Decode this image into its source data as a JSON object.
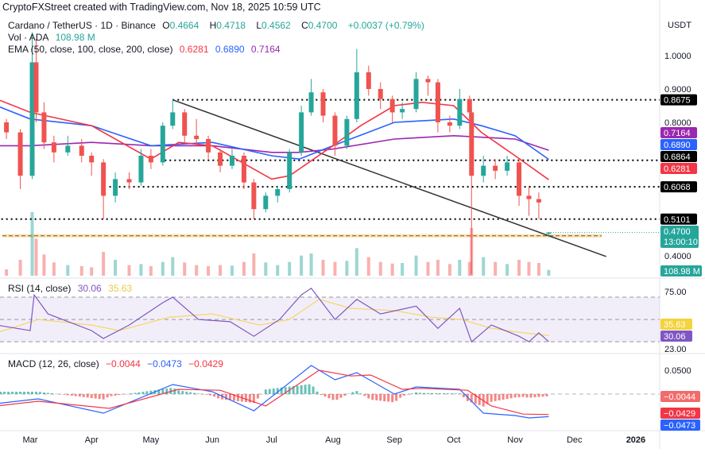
{
  "credit": "CryptoFXStreet created with TradingView.com, Nov 18, 2025 10:59 UTC",
  "legend": {
    "symbol": "Cardano / TetherUS · 1D · Binance",
    "o_label": "O",
    "o": "0.4664",
    "h_label": "H",
    "h": "0.4718",
    "l_label": "L",
    "l": "0.4562",
    "c_label": "C",
    "c": "0.4700",
    "change": "+0.0037 (+0.79%)",
    "vol_label": "Vol · ADA",
    "vol": "108.98 M",
    "ema_label": "EMA (50, close, 100, close, 200, close)",
    "ema50": "0.6281",
    "ema100": "0.6890",
    "ema200": "0.7164",
    "rsi_label": "RSI (14, close)",
    "rsi": "30.06",
    "rsi_ma": "35.63",
    "macd_label": "MACD (12, 26, close)",
    "macd_hist": "−0.0044",
    "macd": "−0.0473",
    "macd_signal": "−0.0429"
  },
  "currency": "USDT",
  "colors": {
    "up": "#26a69a",
    "down": "#ef5350",
    "ema50": "#f23645",
    "ema100": "#2962ff",
    "ema200": "#9c27b0",
    "rsi": "#7e57c2",
    "rsi_ma": "#f5d76e",
    "support_zone": "#f7c873",
    "level": "#000000"
  },
  "chart_data": [
    {
      "type": "candlestick",
      "pane": "price",
      "yticks": [
        "1.0000",
        "0.9000",
        "0.8000",
        "0.4000"
      ],
      "ylim": [
        0.36,
        1.09
      ],
      "xticks": [
        "Mar",
        "Apr",
        "May",
        "Jun",
        "Jul",
        "Aug",
        "Sep",
        "Oct",
        "Nov",
        "Dec",
        "2026"
      ],
      "xtick_dates": [
        "2025-03-01",
        "2025-04-01",
        "2025-05-01",
        "2025-06-01",
        "2025-07-01",
        "2025-08-01",
        "2025-09-01",
        "2025-10-01",
        "2025-11-01",
        "2025-12-01",
        "2026-01-01"
      ],
      "candles": [
        [
          "2025-02-12",
          0.82,
          0.8,
          0.84,
          0.78
        ],
        [
          "2025-02-17",
          0.8,
          0.77,
          0.81,
          0.75
        ],
        [
          "2025-02-24",
          0.77,
          0.64,
          0.78,
          0.6
        ],
        [
          "2025-03-02",
          0.64,
          0.98,
          1.07,
          0.63
        ],
        [
          "2025-03-04",
          0.98,
          0.83,
          1.05,
          0.8
        ],
        [
          "2025-03-08",
          0.83,
          0.74,
          0.86,
          0.72
        ],
        [
          "2025-03-13",
          0.74,
          0.71,
          0.76,
          0.68
        ],
        [
          "2025-03-20",
          0.71,
          0.73,
          0.76,
          0.7
        ],
        [
          "2025-03-27",
          0.73,
          0.7,
          0.75,
          0.68
        ],
        [
          "2025-04-01",
          0.7,
          0.68,
          0.71,
          0.64
        ],
        [
          "2025-04-07",
          0.68,
          0.58,
          0.69,
          0.51
        ],
        [
          "2025-04-13",
          0.58,
          0.63,
          0.65,
          0.56
        ],
        [
          "2025-04-20",
          0.63,
          0.62,
          0.65,
          0.6
        ],
        [
          "2025-04-26",
          0.62,
          0.7,
          0.72,
          0.61
        ],
        [
          "2025-05-01",
          0.7,
          0.68,
          0.72,
          0.66
        ],
        [
          "2025-05-07",
          0.68,
          0.79,
          0.8,
          0.67
        ],
        [
          "2025-05-12",
          0.79,
          0.83,
          0.8675,
          0.78
        ],
        [
          "2025-05-18",
          0.83,
          0.76,
          0.84,
          0.74
        ],
        [
          "2025-05-24",
          0.76,
          0.75,
          0.81,
          0.73
        ],
        [
          "2025-05-30",
          0.75,
          0.71,
          0.76,
          0.69
        ],
        [
          "2025-06-05",
          0.71,
          0.67,
          0.72,
          0.65
        ],
        [
          "2025-06-11",
          0.67,
          0.7,
          0.72,
          0.66
        ],
        [
          "2025-06-17",
          0.7,
          0.62,
          0.71,
          0.6
        ],
        [
          "2025-06-22",
          0.62,
          0.54,
          0.63,
          0.51
        ],
        [
          "2025-06-28",
          0.54,
          0.58,
          0.59,
          0.53
        ],
        [
          "2025-07-04",
          0.58,
          0.6,
          0.61,
          0.56
        ],
        [
          "2025-07-10",
          0.6,
          0.71,
          0.72,
          0.59
        ],
        [
          "2025-07-16",
          0.71,
          0.83,
          0.85,
          0.7
        ],
        [
          "2025-07-21",
          0.83,
          0.89,
          0.93,
          0.82
        ],
        [
          "2025-07-27",
          0.89,
          0.82,
          0.9,
          0.8
        ],
        [
          "2025-08-02",
          0.82,
          0.73,
          0.83,
          0.7
        ],
        [
          "2025-08-08",
          0.73,
          0.81,
          0.82,
          0.72
        ],
        [
          "2025-08-13",
          0.81,
          0.95,
          1.02,
          0.8
        ],
        [
          "2025-08-19",
          0.95,
          0.9,
          0.97,
          0.88
        ],
        [
          "2025-08-25",
          0.9,
          0.87,
          0.92,
          0.84
        ],
        [
          "2025-08-31",
          0.87,
          0.83,
          0.88,
          0.8
        ],
        [
          "2025-09-05",
          0.83,
          0.84,
          0.86,
          0.81
        ],
        [
          "2025-09-12",
          0.84,
          0.93,
          0.95,
          0.83
        ],
        [
          "2025-09-18",
          0.93,
          0.92,
          0.94,
          0.88
        ],
        [
          "2025-09-23",
          0.92,
          0.8,
          0.93,
          0.77
        ],
        [
          "2025-09-29",
          0.8,
          0.79,
          0.82,
          0.77
        ],
        [
          "2025-10-04",
          0.79,
          0.87,
          0.9,
          0.78
        ],
        [
          "2025-10-09",
          0.87,
          0.83,
          0.88,
          0.81
        ],
        [
          "2025-10-10",
          0.83,
          0.64,
          0.84,
          0.345
        ],
        [
          "2025-10-16",
          0.64,
          0.67,
          0.7,
          0.62
        ],
        [
          "2025-10-22",
          0.67,
          0.655,
          0.69,
          0.63
        ],
        [
          "2025-10-28",
          0.655,
          0.68,
          0.7,
          0.64
        ],
        [
          "2025-11-03",
          0.68,
          0.58,
          0.69,
          0.55
        ],
        [
          "2025-11-08",
          0.58,
          0.57,
          0.61,
          0.52
        ],
        [
          "2025-11-13",
          0.57,
          0.56,
          0.59,
          0.51
        ],
        [
          "2025-11-18",
          0.4664,
          0.47,
          0.4718,
          0.4562
        ]
      ],
      "ema_series": {
        "ema50": [
          [
            "2025-02-12",
            0.87
          ],
          [
            "2025-03-01",
            0.83
          ],
          [
            "2025-04-01",
            0.79
          ],
          [
            "2025-05-01",
            0.69
          ],
          [
            "2025-05-15",
            0.74
          ],
          [
            "2025-06-01",
            0.73
          ],
          [
            "2025-07-01",
            0.63
          ],
          [
            "2025-07-10",
            0.64
          ],
          [
            "2025-08-01",
            0.73
          ],
          [
            "2025-08-15",
            0.79
          ],
          [
            "2025-09-01",
            0.85
          ],
          [
            "2025-09-15",
            0.86
          ],
          [
            "2025-10-01",
            0.85
          ],
          [
            "2025-10-15",
            0.77
          ],
          [
            "2025-11-01",
            0.7
          ],
          [
            "2025-11-18",
            0.6281
          ]
        ],
        "ema100": [
          [
            "2025-02-12",
            0.85
          ],
          [
            "2025-03-01",
            0.81
          ],
          [
            "2025-04-01",
            0.79
          ],
          [
            "2025-05-01",
            0.73
          ],
          [
            "2025-06-01",
            0.74
          ],
          [
            "2025-07-01",
            0.7
          ],
          [
            "2025-07-15",
            0.69
          ],
          [
            "2025-08-01",
            0.73
          ],
          [
            "2025-09-01",
            0.8
          ],
          [
            "2025-10-01",
            0.81
          ],
          [
            "2025-10-15",
            0.79
          ],
          [
            "2025-11-01",
            0.76
          ],
          [
            "2025-11-18",
            0.689
          ]
        ],
        "ema200": [
          [
            "2025-02-12",
            0.73
          ],
          [
            "2025-03-01",
            0.73
          ],
          [
            "2025-04-01",
            0.74
          ],
          [
            "2025-05-01",
            0.73
          ],
          [
            "2025-06-01",
            0.73
          ],
          [
            "2025-07-01",
            0.71
          ],
          [
            "2025-07-15",
            0.71
          ],
          [
            "2025-08-01",
            0.72
          ],
          [
            "2025-09-01",
            0.75
          ],
          [
            "2025-10-01",
            0.76
          ],
          [
            "2025-11-01",
            0.75
          ],
          [
            "2025-11-18",
            0.7164
          ]
        ]
      },
      "levels": [
        [
          "0.8675",
          "2025-05-12"
        ],
        [
          "0.6864",
          "2025-05-08"
        ],
        [
          "0.6068",
          "2025-04-10"
        ],
        [
          "0.5101",
          "2025-02-12"
        ]
      ],
      "support_zone": [
        0.455,
        0.465
      ],
      "trendline": [
        [
          "2025-05-12",
          0.8675
        ],
        [
          "2025-12-17",
          0.398
        ]
      ],
      "last_price": "0.4700",
      "countdown": "13:00:10",
      "volume": {
        "unit": "M",
        "last": "108.98 M",
        "values": [
          150,
          120,
          300,
          1200,
          700,
          400,
          250,
          200,
          180,
          160,
          450,
          300,
          200,
          220,
          180,
          260,
          350,
          250,
          200,
          180,
          200,
          190,
          260,
          420,
          250,
          200,
          260,
          380,
          420,
          300,
          260,
          280,
          520,
          350,
          260,
          230,
          240,
          380,
          260,
          300,
          220,
          300,
          260,
          900,
          350,
          260,
          220,
          300,
          260,
          240,
          108.98
        ]
      }
    },
    {
      "type": "line",
      "pane": "rsi",
      "yticks": [
        "75.00",
        "23.00"
      ],
      "ylim": [
        23,
        82
      ],
      "bands": [
        70,
        50,
        30
      ],
      "series": [
        [
          "2025-02-12",
          45
        ],
        [
          "2025-03-01",
          40
        ],
        [
          "2025-03-03",
          72
        ],
        [
          "2025-03-10",
          55
        ],
        [
          "2025-04-01",
          40
        ],
        [
          "2025-04-07",
          33
        ],
        [
          "2025-04-20",
          45
        ],
        [
          "2025-05-07",
          65
        ],
        [
          "2025-05-12",
          70
        ],
        [
          "2025-05-25",
          50
        ],
        [
          "2025-06-10",
          48
        ],
        [
          "2025-06-22",
          35
        ],
        [
          "2025-07-05",
          50
        ],
        [
          "2025-07-16",
          72
        ],
        [
          "2025-07-21",
          78
        ],
        [
          "2025-08-02",
          50
        ],
        [
          "2025-08-13",
          68
        ],
        [
          "2025-08-25",
          55
        ],
        [
          "2025-09-12",
          62
        ],
        [
          "2025-09-23",
          42
        ],
        [
          "2025-10-04",
          60
        ],
        [
          "2025-10-10",
          30
        ],
        [
          "2025-10-20",
          45
        ],
        [
          "2025-11-03",
          35
        ],
        [
          "2025-11-08",
          30
        ],
        [
          "2025-11-13",
          38
        ],
        [
          "2025-11-18",
          30.06
        ]
      ],
      "ma_series": [
        [
          "2025-02-12",
          38
        ],
        [
          "2025-03-05",
          50
        ],
        [
          "2025-04-01",
          45
        ],
        [
          "2025-04-15",
          40
        ],
        [
          "2025-05-10",
          52
        ],
        [
          "2025-06-01",
          55
        ],
        [
          "2025-06-25",
          45
        ],
        [
          "2025-07-10",
          50
        ],
        [
          "2025-07-25",
          68
        ],
        [
          "2025-08-10",
          60
        ],
        [
          "2025-09-01",
          58
        ],
        [
          "2025-09-20",
          52
        ],
        [
          "2025-10-05",
          50
        ],
        [
          "2025-10-20",
          42
        ],
        [
          "2025-11-05",
          38
        ],
        [
          "2025-11-18",
          35.63
        ]
      ]
    },
    {
      "type": "line",
      "pane": "macd",
      "yticks": [
        "0.0500"
      ],
      "ylim": [
        -0.07,
        0.078
      ],
      "macd": [
        [
          "2025-02-12",
          -0.02
        ],
        [
          "2025-03-05",
          -0.01
        ],
        [
          "2025-04-07",
          -0.04
        ],
        [
          "2025-05-12",
          0.02
        ],
        [
          "2025-06-01",
          0.005
        ],
        [
          "2025-06-22",
          -0.035
        ],
        [
          "2025-07-21",
          0.06
        ],
        [
          "2025-08-02",
          0.03
        ],
        [
          "2025-08-13",
          0.045
        ],
        [
          "2025-09-01",
          0.0
        ],
        [
          "2025-09-12",
          0.015
        ],
        [
          "2025-10-04",
          0.01
        ],
        [
          "2025-10-16",
          -0.04
        ],
        [
          "2025-11-01",
          -0.045
        ],
        [
          "2025-11-08",
          -0.05
        ],
        [
          "2025-11-18",
          -0.0473
        ]
      ],
      "signal": [
        [
          "2025-02-12",
          -0.025
        ],
        [
          "2025-03-05",
          -0.015
        ],
        [
          "2025-04-10",
          -0.03
        ],
        [
          "2025-05-15",
          0.01
        ],
        [
          "2025-06-05",
          0.008
        ],
        [
          "2025-06-28",
          -0.025
        ],
        [
          "2025-07-25",
          0.05
        ],
        [
          "2025-08-10",
          0.038
        ],
        [
          "2025-08-20",
          0.04
        ],
        [
          "2025-09-05",
          0.01
        ],
        [
          "2025-09-15",
          0.012
        ],
        [
          "2025-10-08",
          0.008
        ],
        [
          "2025-10-20",
          -0.025
        ],
        [
          "2025-11-05",
          -0.042
        ],
        [
          "2025-11-18",
          -0.0429
        ]
      ]
    }
  ]
}
